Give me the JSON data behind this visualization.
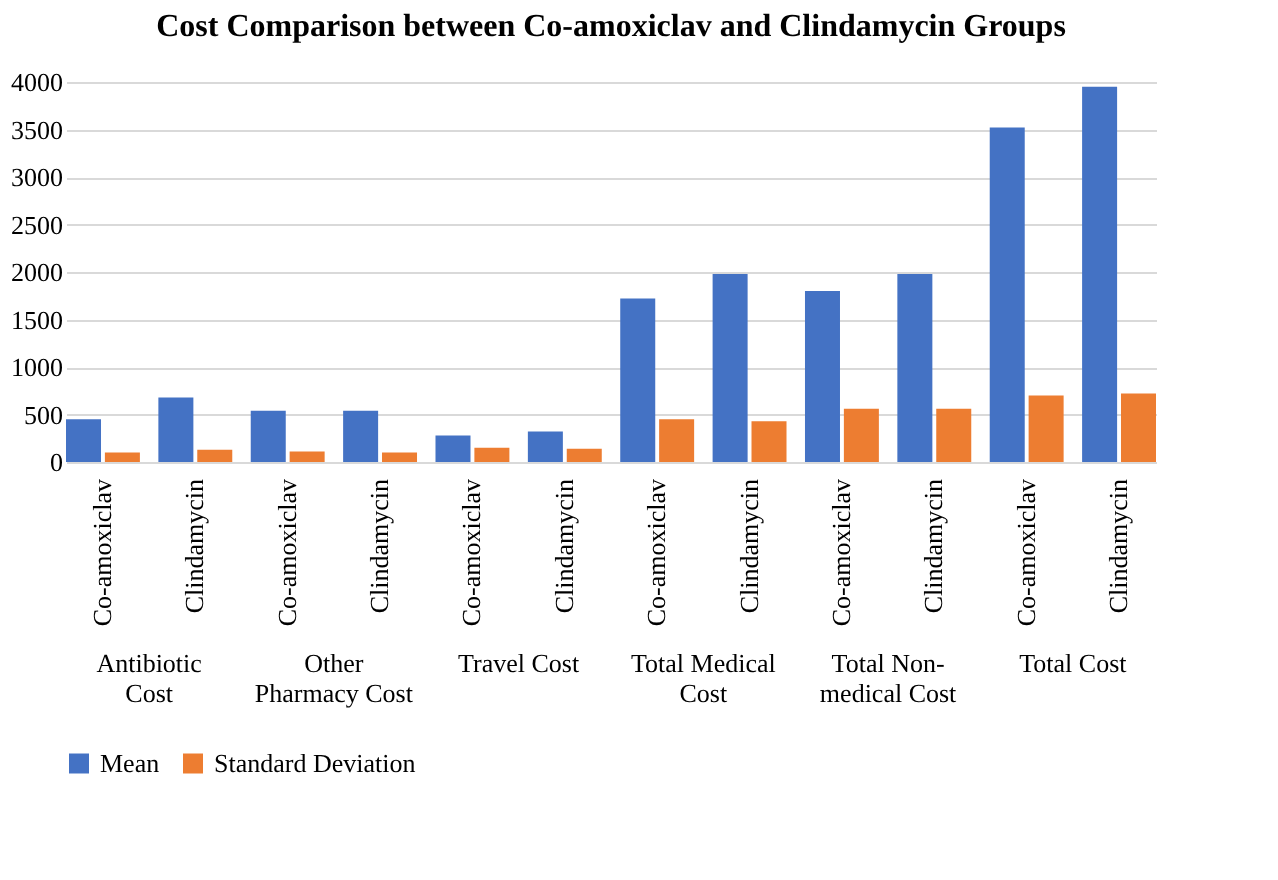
{
  "chart_data": {
    "type": "bar",
    "title": "Cost Comparison between Co-amoxiclav and Clindamycin Groups",
    "categories": [
      "Co-amoxiclav",
      "Clindamycin",
      "Co-amoxiclav",
      "Clindamycin",
      "Co-amoxiclav",
      "Clindamycin",
      "Co-amoxiclav",
      "Clindamycin",
      "Co-amoxiclav",
      "Clindamycin",
      "Co-amoxiclav",
      "Clindamycin"
    ],
    "annotations": [
      "Antibiotic Cost",
      "Other Pharmacy Cost",
      "Travel Cost",
      "Total Medical Cost",
      "Total Non-medical Cost",
      "Total Cost"
    ],
    "series": [
      {
        "name": "Mean",
        "color": "#4472c4",
        "values": [
          450,
          680,
          540,
          540,
          280,
          320,
          1720,
          1980,
          1800,
          1980,
          3520,
          3950
        ]
      },
      {
        "name": "Standard Deviation",
        "color": "#ed7d31",
        "values": [
          100,
          130,
          110,
          100,
          150,
          140,
          450,
          430,
          560,
          560,
          700,
          720
        ]
      }
    ],
    "ylim": [
      0,
      4000
    ],
    "yticks": [
      0,
      500,
      1000,
      1500,
      2000,
      2500,
      3000,
      3500,
      4000
    ],
    "grid": "y",
    "legend": "bottom"
  }
}
